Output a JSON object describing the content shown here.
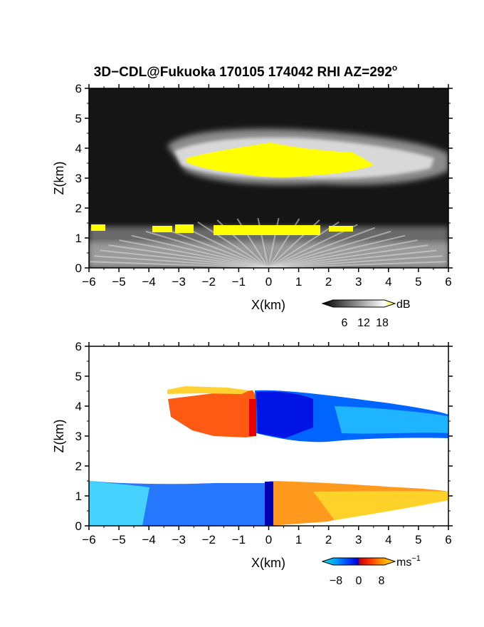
{
  "chart_data": [
    {
      "type": "heatmap",
      "title": "3D−CDL@Fukuoka 170105 174042 RHI AZ=292",
      "title_sup": "o",
      "xlabel": "X(km)",
      "ylabel": "Z(km)",
      "xlim": [
        -6,
        6
      ],
      "ylim": [
        0,
        6
      ],
      "xticks": [
        "−6",
        "−5",
        "−4",
        "−3",
        "−2",
        "−1",
        "0",
        "1",
        "2",
        "3",
        "4",
        "5",
        "6"
      ],
      "yticks": [
        "0",
        "1",
        "2",
        "3",
        "4",
        "5",
        "6"
      ],
      "colorbar": {
        "unit": "dB",
        "ticks": [
          "6",
          "12",
          "18"
        ],
        "range": [
          0,
          20
        ],
        "overflow_color": "#ffff00"
      },
      "features": [
        {
          "name": "upper layer",
          "x_range": [
            -3.3,
            6
          ],
          "z_range": [
            2.8,
            4.6
          ],
          "core_x": [
            -2.8,
            3.5
          ],
          "core_z": [
            3.0,
            4.2
          ]
        },
        {
          "name": "lower layer",
          "x_range": [
            -6,
            6
          ],
          "z_range": [
            0,
            1.5
          ],
          "bright_z": [
            1.1,
            1.4
          ]
        }
      ],
      "grid": false
    },
    {
      "type": "heatmap",
      "title": "",
      "xlabel": "X(km)",
      "ylabel": "Z(km)",
      "xlim": [
        -6,
        6
      ],
      "ylim": [
        0,
        6
      ],
      "xticks": [
        "−6",
        "−5",
        "−4",
        "−3",
        "−2",
        "−1",
        "0",
        "1",
        "2",
        "3",
        "4",
        "5",
        "6"
      ],
      "yticks": [
        "0",
        "1",
        "2",
        "3",
        "4",
        "5",
        "6"
      ],
      "colorbar": {
        "unit": "ms",
        "unit_sup": "−1",
        "ticks": [
          "−8",
          "0",
          "8"
        ],
        "range": [
          -10,
          10
        ]
      },
      "features": [
        {
          "name": "upper layer positive",
          "x_range": [
            -3.3,
            -0.5
          ],
          "z_range": [
            2.9,
            4.6
          ],
          "velocity": 5
        },
        {
          "name": "upper layer negative",
          "x_range": [
            -0.5,
            6
          ],
          "z_range": [
            2.9,
            4.5
          ],
          "velocity": -6
        },
        {
          "name": "lower layer negative",
          "x_range": [
            -6,
            0
          ],
          "z_range": [
            0,
            1.5
          ],
          "velocity": -5
        },
        {
          "name": "lower layer positive",
          "x_range": [
            0,
            6
          ],
          "z_range": [
            0,
            1.5
          ],
          "velocity": 6
        }
      ],
      "grid": false
    }
  ],
  "colors": {
    "echo_dark": "#141414",
    "echo_saturated": "#ffff00",
    "velocity_scale": [
      "#00e6e6",
      "#0096ff",
      "#0032ff",
      "#0000c8",
      "#c80000",
      "#ff3200",
      "#ff9600",
      "#ffe600"
    ]
  }
}
